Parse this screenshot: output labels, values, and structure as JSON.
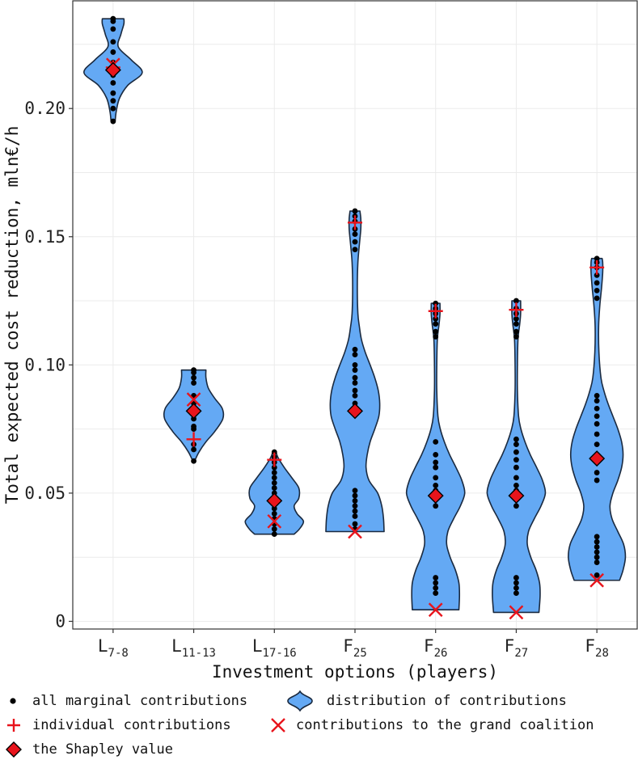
{
  "chart_data": {
    "type": "violin",
    "title": "",
    "xlabel": "Investment options (players)",
    "ylabel": "Total expected cost reduction, mln€/h",
    "ylim": [
      -0.003,
      0.242
    ],
    "yticks": [
      0,
      0.05,
      0.1,
      0.15,
      0.2
    ],
    "ytick_labels": [
      "0",
      "0.05",
      "0.10",
      "0.15",
      "0.20"
    ],
    "grid": true,
    "categories": [
      {
        "base": "L",
        "sub": "7-8"
      },
      {
        "base": "L",
        "sub": "11-13"
      },
      {
        "base": "L",
        "sub": "17-16"
      },
      {
        "base": "F",
        "sub": "25"
      },
      {
        "base": "F",
        "sub": "26"
      },
      {
        "base": "F",
        "sub": "27"
      },
      {
        "base": "F",
        "sub": "28"
      }
    ],
    "series": [
      {
        "name": "L7-8",
        "range": [
          0.195,
          0.235
        ],
        "density": [
          [
            0.195,
            0.07
          ],
          [
            0.199,
            0.11
          ],
          [
            0.204,
            0.22
          ],
          [
            0.209,
            0.5
          ],
          [
            0.214,
            1.0
          ],
          [
            0.219,
            0.62
          ],
          [
            0.224,
            0.18
          ],
          [
            0.229,
            0.27
          ],
          [
            0.233,
            0.37
          ],
          [
            0.235,
            0.37
          ]
        ],
        "marginal_contributions": [
          0.195,
          0.2,
          0.203,
          0.206,
          0.21,
          0.213,
          0.216,
          0.218,
          0.222,
          0.226,
          0.231,
          0.234,
          0.235
        ],
        "individual_contribution": 0.216,
        "grand_coalition_contribution": 0.217,
        "shapley_value": 0.215
      },
      {
        "name": "L11-13",
        "range": [
          0.0625,
          0.098
        ],
        "density": [
          [
            0.0625,
            0.03
          ],
          [
            0.066,
            0.18
          ],
          [
            0.07,
            0.42
          ],
          [
            0.074,
            0.72
          ],
          [
            0.079,
            1.0
          ],
          [
            0.083,
            0.98
          ],
          [
            0.087,
            0.72
          ],
          [
            0.091,
            0.5
          ],
          [
            0.095,
            0.42
          ],
          [
            0.098,
            0.42
          ]
        ],
        "marginal_contributions": [
          0.0625,
          0.067,
          0.069,
          0.075,
          0.076,
          0.079,
          0.082,
          0.085,
          0.088,
          0.093,
          0.095,
          0.097,
          0.098
        ],
        "individual_contribution": 0.071,
        "grand_coalition_contribution": 0.0865,
        "shapley_value": 0.082
      },
      {
        "name": "L17-16",
        "range": [
          0.034,
          0.0665
        ],
        "density": [
          [
            0.034,
            0.68
          ],
          [
            0.036,
            0.86
          ],
          [
            0.039,
            1.0
          ],
          [
            0.042,
            0.78
          ],
          [
            0.045,
            0.68
          ],
          [
            0.048,
            0.84
          ],
          [
            0.052,
            0.84
          ],
          [
            0.056,
            0.6
          ],
          [
            0.06,
            0.34
          ],
          [
            0.064,
            0.12
          ],
          [
            0.0665,
            0.05
          ]
        ],
        "marginal_contributions": [
          0.034,
          0.036,
          0.038,
          0.04,
          0.042,
          0.044,
          0.046,
          0.048,
          0.05,
          0.052,
          0.054,
          0.056,
          0.058,
          0.06,
          0.062,
          0.064,
          0.066
        ],
        "individual_contribution": 0.063,
        "grand_coalition_contribution": 0.039,
        "shapley_value": 0.047
      },
      {
        "name": "F25",
        "range": [
          0.035,
          0.16
        ],
        "density": [
          [
            0.035,
            1.0
          ],
          [
            0.04,
            0.98
          ],
          [
            0.045,
            0.92
          ],
          [
            0.05,
            0.78
          ],
          [
            0.055,
            0.48
          ],
          [
            0.06,
            0.38
          ],
          [
            0.065,
            0.42
          ],
          [
            0.07,
            0.52
          ],
          [
            0.075,
            0.68
          ],
          [
            0.08,
            0.82
          ],
          [
            0.085,
            0.85
          ],
          [
            0.09,
            0.8
          ],
          [
            0.095,
            0.68
          ],
          [
            0.1,
            0.52
          ],
          [
            0.105,
            0.35
          ],
          [
            0.11,
            0.22
          ],
          [
            0.115,
            0.15
          ],
          [
            0.12,
            0.1
          ],
          [
            0.13,
            0.08
          ],
          [
            0.14,
            0.1
          ],
          [
            0.148,
            0.16
          ],
          [
            0.153,
            0.2
          ],
          [
            0.157,
            0.2
          ],
          [
            0.16,
            0.17
          ]
        ],
        "marginal_contributions": [
          0.036,
          0.038,
          0.041,
          0.043,
          0.045,
          0.047,
          0.049,
          0.051,
          0.082,
          0.085,
          0.088,
          0.09,
          0.093,
          0.095,
          0.098,
          0.1,
          0.104,
          0.106,
          0.145,
          0.148,
          0.151,
          0.153,
          0.156,
          0.158,
          0.16
        ],
        "individual_contribution": 0.1555,
        "grand_coalition_contribution": 0.035,
        "shapley_value": 0.082
      },
      {
        "name": "F26",
        "range": [
          0.0045,
          0.124
        ],
        "density": [
          [
            0.0045,
            0.8
          ],
          [
            0.01,
            0.82
          ],
          [
            0.015,
            0.8
          ],
          [
            0.02,
            0.68
          ],
          [
            0.025,
            0.5
          ],
          [
            0.03,
            0.38
          ],
          [
            0.035,
            0.42
          ],
          [
            0.04,
            0.62
          ],
          [
            0.045,
            0.85
          ],
          [
            0.05,
            1.0
          ],
          [
            0.055,
            0.9
          ],
          [
            0.06,
            0.7
          ],
          [
            0.065,
            0.48
          ],
          [
            0.07,
            0.3
          ],
          [
            0.075,
            0.16
          ],
          [
            0.08,
            0.08
          ],
          [
            0.09,
            0.04
          ],
          [
            0.1,
            0.04
          ],
          [
            0.11,
            0.06
          ],
          [
            0.116,
            0.12
          ],
          [
            0.12,
            0.15
          ],
          [
            0.124,
            0.15
          ]
        ],
        "marginal_contributions": [
          0.011,
          0.013,
          0.015,
          0.017,
          0.045,
          0.048,
          0.051,
          0.053,
          0.056,
          0.06,
          0.062,
          0.065,
          0.07,
          0.111,
          0.113,
          0.116,
          0.118,
          0.12,
          0.122,
          0.124
        ],
        "individual_contribution": 0.121,
        "grand_coalition_contribution": 0.0045,
        "shapley_value": 0.049
      },
      {
        "name": "F27",
        "range": [
          0.0035,
          0.125
        ],
        "density": [
          [
            0.0035,
            0.78
          ],
          [
            0.01,
            0.82
          ],
          [
            0.015,
            0.8
          ],
          [
            0.02,
            0.68
          ],
          [
            0.025,
            0.5
          ],
          [
            0.03,
            0.38
          ],
          [
            0.035,
            0.42
          ],
          [
            0.04,
            0.62
          ],
          [
            0.045,
            0.85
          ],
          [
            0.05,
            1.0
          ],
          [
            0.055,
            0.9
          ],
          [
            0.06,
            0.7
          ],
          [
            0.065,
            0.48
          ],
          [
            0.07,
            0.3
          ],
          [
            0.075,
            0.16
          ],
          [
            0.08,
            0.08
          ],
          [
            0.09,
            0.04
          ],
          [
            0.1,
            0.04
          ],
          [
            0.11,
            0.06
          ],
          [
            0.116,
            0.12
          ],
          [
            0.12,
            0.15
          ],
          [
            0.125,
            0.15
          ]
        ],
        "marginal_contributions": [
          0.011,
          0.013,
          0.015,
          0.017,
          0.045,
          0.048,
          0.051,
          0.053,
          0.056,
          0.06,
          0.063,
          0.066,
          0.069,
          0.071,
          0.111,
          0.113,
          0.116,
          0.118,
          0.12,
          0.122,
          0.125
        ],
        "individual_contribution": 0.1215,
        "grand_coalition_contribution": 0.0035,
        "shapley_value": 0.049
      },
      {
        "name": "F28",
        "range": [
          0.016,
          0.1415
        ],
        "density": [
          [
            0.016,
            0.78
          ],
          [
            0.02,
            0.9
          ],
          [
            0.025,
            0.98
          ],
          [
            0.03,
            0.92
          ],
          [
            0.035,
            0.72
          ],
          [
            0.04,
            0.52
          ],
          [
            0.045,
            0.45
          ],
          [
            0.05,
            0.55
          ],
          [
            0.055,
            0.72
          ],
          [
            0.06,
            0.85
          ],
          [
            0.065,
            0.9
          ],
          [
            0.07,
            0.85
          ],
          [
            0.075,
            0.72
          ],
          [
            0.08,
            0.55
          ],
          [
            0.085,
            0.38
          ],
          [
            0.09,
            0.24
          ],
          [
            0.095,
            0.14
          ],
          [
            0.105,
            0.07
          ],
          [
            0.115,
            0.06
          ],
          [
            0.123,
            0.1
          ],
          [
            0.13,
            0.16
          ],
          [
            0.136,
            0.2
          ],
          [
            0.14,
            0.2
          ],
          [
            0.1415,
            0.18
          ]
        ],
        "marginal_contributions": [
          0.018,
          0.023,
          0.025,
          0.027,
          0.029,
          0.031,
          0.033,
          0.055,
          0.058,
          0.062,
          0.065,
          0.069,
          0.073,
          0.077,
          0.08,
          0.083,
          0.086,
          0.088,
          0.126,
          0.129,
          0.132,
          0.135,
          0.138,
          0.14,
          0.1415
        ],
        "individual_contribution": 0.138,
        "grand_coalition_contribution": 0.016,
        "shapley_value": 0.0635
      }
    ],
    "legend": {
      "position": "bottom",
      "entries": [
        {
          "key": "dots",
          "label": "all marginal contributions"
        },
        {
          "key": "violin",
          "label": "distribution of contributions"
        },
        {
          "key": "plus",
          "label": "individual contributions"
        },
        {
          "key": "cross",
          "label": "contributions to the grand coalition"
        },
        {
          "key": "diamond",
          "label": "the Shapley value"
        }
      ]
    },
    "colors": {
      "violin_fill": "#64a9f4",
      "violin_stroke": "#1a2a40",
      "dot": "#000000",
      "marker_red": "#e8141c",
      "diamond_stroke": "#000000",
      "grid": "#ebebeb",
      "axis": "#333333"
    }
  }
}
